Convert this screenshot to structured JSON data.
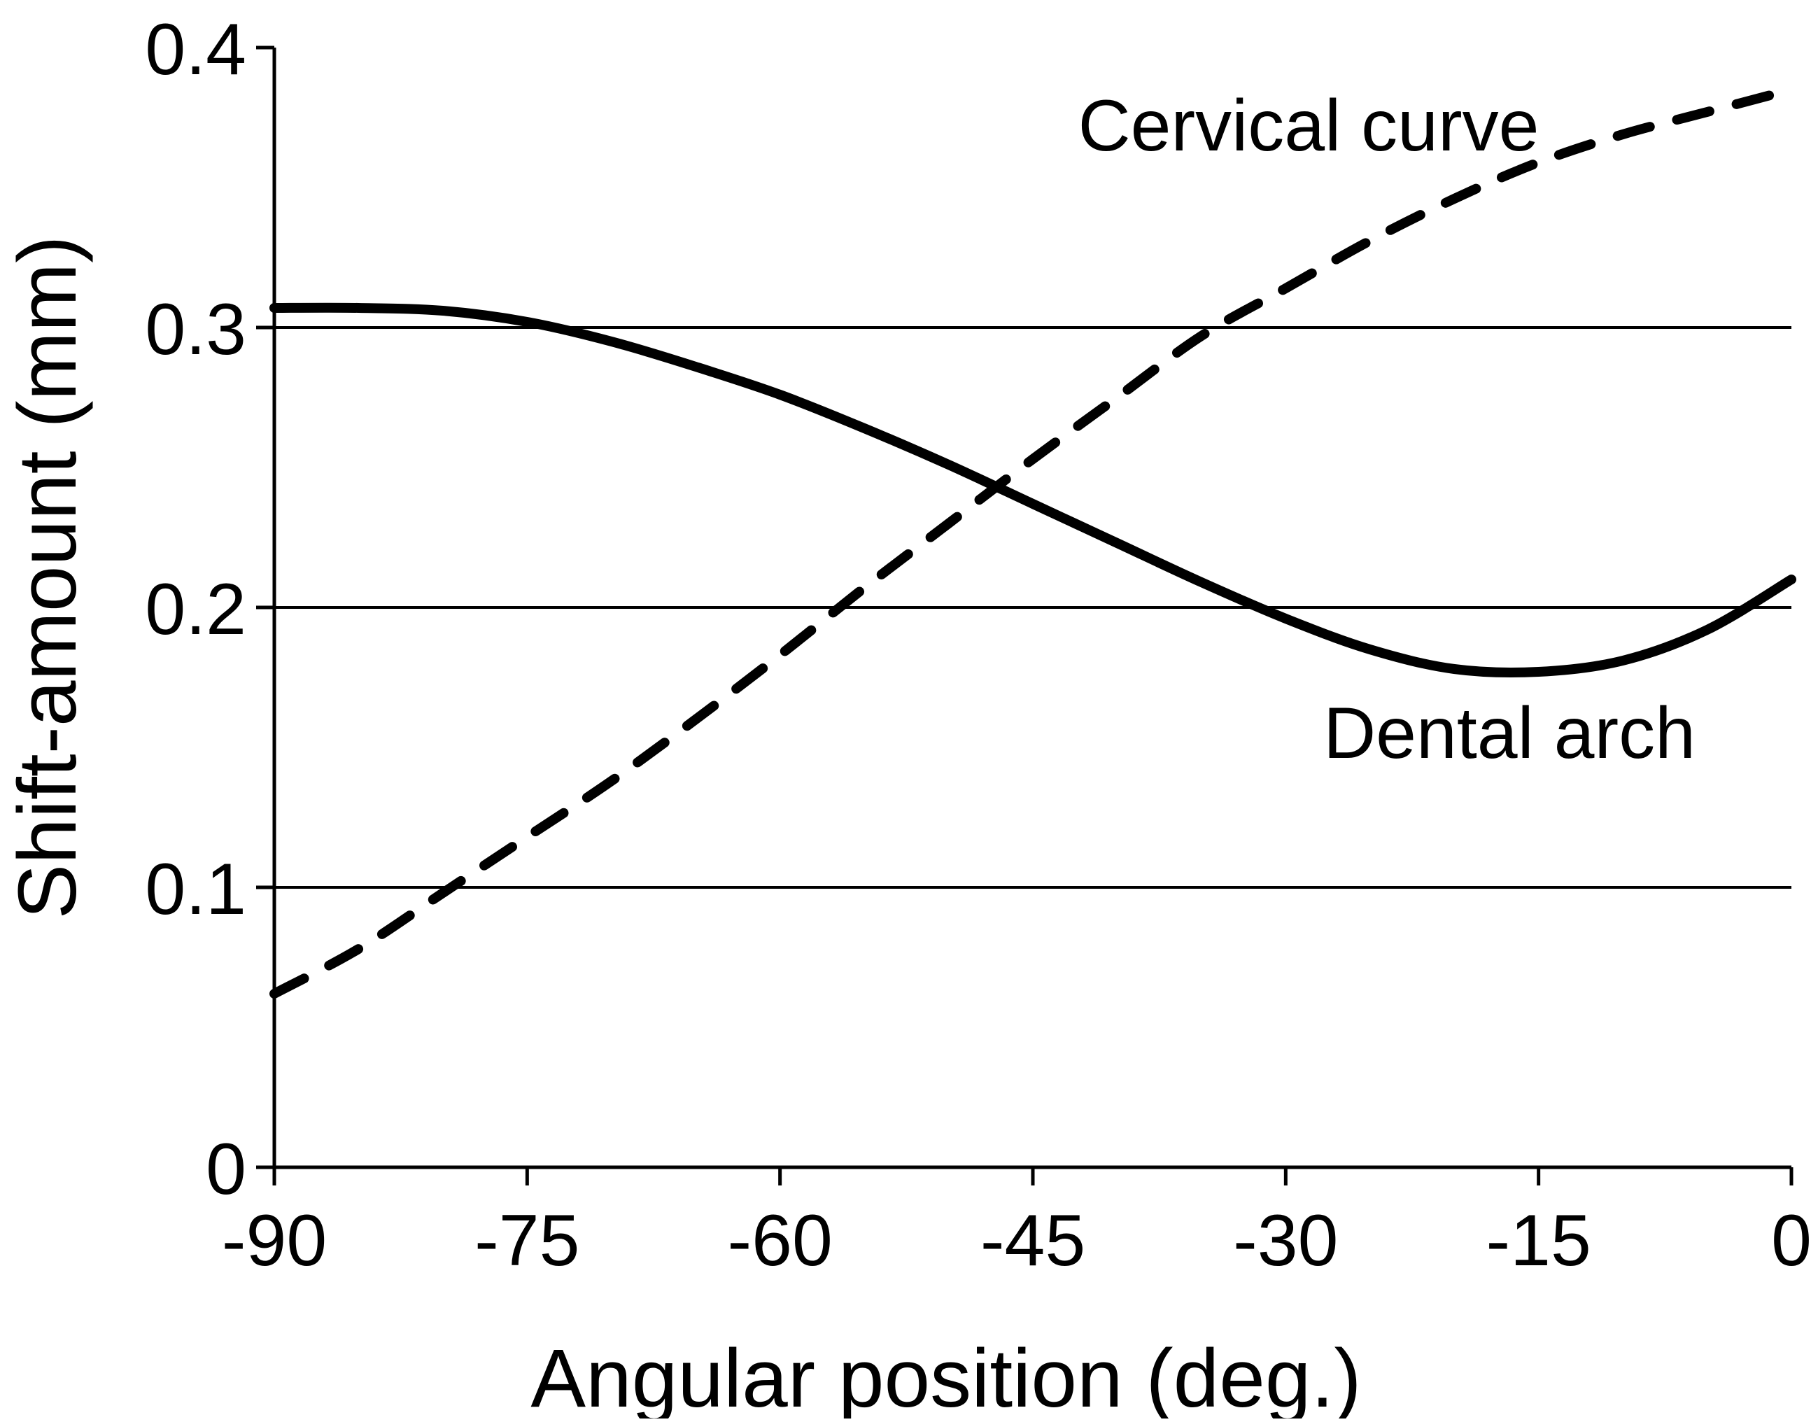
{
  "chart_data": {
    "type": "line",
    "title": "",
    "xlabel": "Angular position (deg.)",
    "ylabel": "Shift-amount (mm)",
    "xlim": [
      -90,
      0
    ],
    "ylim": [
      0,
      0.4
    ],
    "x_ticks": [
      -90,
      -75,
      -60,
      -45,
      -30,
      -15,
      0
    ],
    "x_tick_labels": [
      "-90",
      "-75",
      "-60",
      "-45",
      "-30",
      "-15",
      "0"
    ],
    "y_ticks": [
      0,
      0.1,
      0.2,
      0.3,
      0.4
    ],
    "y_tick_labels": [
      "0",
      "0.1",
      "0.2",
      "0.3",
      "0.4"
    ],
    "grid": "horizontal major gridlines at 0.1, 0.2, 0.3",
    "legend": "none (series labeled directly on the plot)",
    "series": [
      {
        "name": "Cervical curve",
        "style": "dashed",
        "color": "#000000",
        "x": [
          -90,
          -85,
          -80,
          -75,
          -70,
          -65,
          -60,
          -55,
          -50,
          -45,
          -40,
          -35,
          -30,
          -25,
          -20,
          -15,
          -10,
          -5,
          0
        ],
        "y": [
          0.062,
          0.078,
          0.098,
          0.118,
          0.138,
          0.16,
          0.183,
          0.207,
          0.23,
          0.253,
          0.275,
          0.297,
          0.314,
          0.331,
          0.346,
          0.359,
          0.369,
          0.377,
          0.385
        ]
      },
      {
        "name": "Dental arch",
        "style": "solid",
        "color": "#000000",
        "x": [
          -90,
          -85,
          -80,
          -75,
          -70,
          -65,
          -60,
          -55,
          -50,
          -45,
          -40,
          -35,
          -30,
          -25,
          -20,
          -15,
          -10,
          -5,
          0
        ],
        "y": [
          0.307,
          0.307,
          0.306,
          0.302,
          0.295,
          0.286,
          0.276,
          0.264,
          0.251,
          0.237,
          0.223,
          0.209,
          0.196,
          0.185,
          0.178,
          0.177,
          0.181,
          0.192,
          0.21
        ]
      }
    ]
  }
}
